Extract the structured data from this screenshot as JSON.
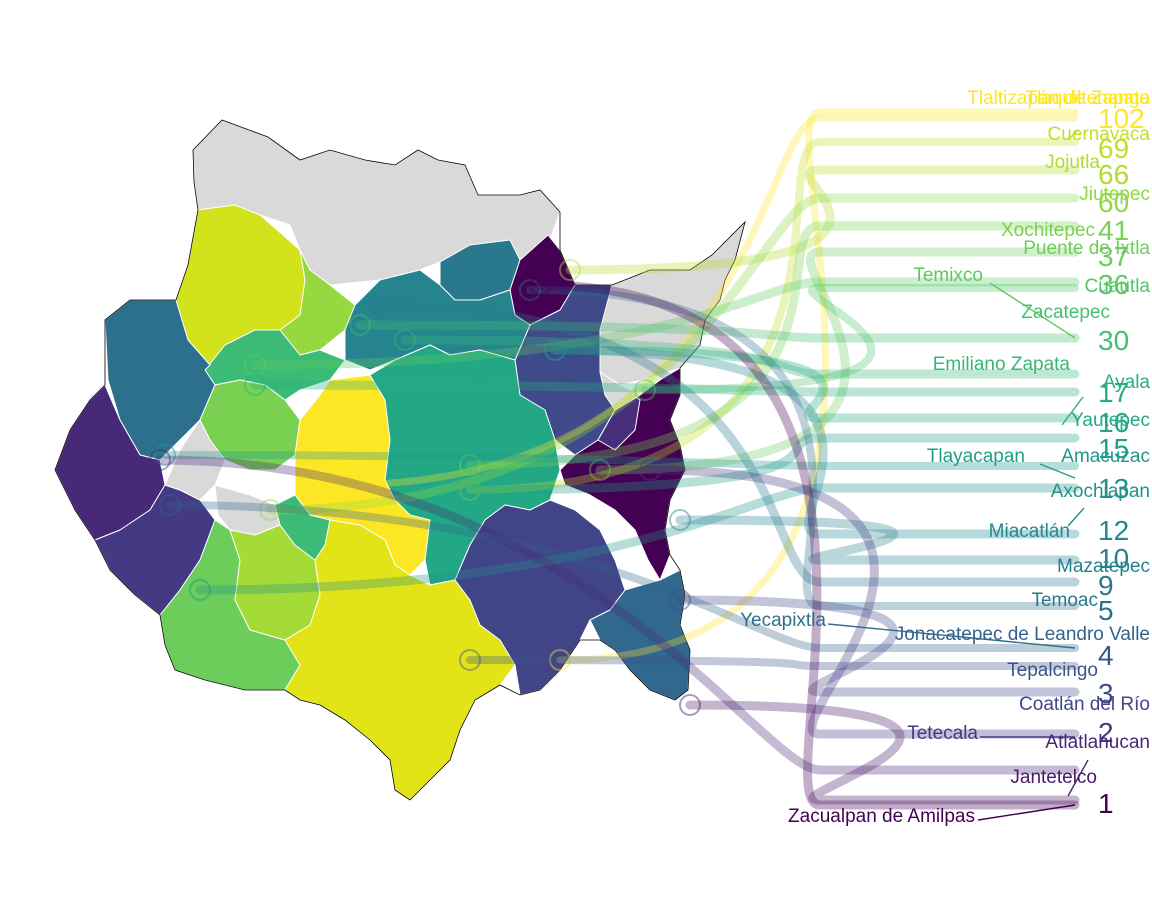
{
  "map": {
    "colors": {
      "no_data": "#d9d9d9",
      "outline": "#000000"
    },
    "regions": [
      {
        "name": "north-west",
        "color": "#d9d9d9"
      },
      {
        "name": "north-east",
        "color": "#d9d9d9"
      },
      {
        "name": "yellow-nw",
        "color": "#d2e21b"
      },
      {
        "name": "green-a",
        "color": "#3bbb75"
      },
      {
        "name": "green-b",
        "color": "#95d840"
      },
      {
        "name": "teal-north",
        "color": "#2a788e"
      },
      {
        "name": "purple-ne",
        "color": "#440154"
      },
      {
        "name": "navy-east",
        "color": "#3e4a89"
      },
      {
        "name": "west-teal",
        "color": "#2d708e"
      },
      {
        "name": "west-purple",
        "color": "#443983"
      },
      {
        "name": "west-purple-2",
        "color": "#482878"
      },
      {
        "name": "center-teal",
        "color": "#22a884"
      },
      {
        "name": "center-yellow",
        "color": "#fde725"
      },
      {
        "name": "center-green",
        "color": "#7ad151"
      },
      {
        "name": "center-teal-2",
        "color": "#25848e"
      },
      {
        "name": "south-yellow",
        "color": "#e3e418"
      },
      {
        "name": "south-green",
        "color": "#6ccd5a"
      },
      {
        "name": "south-lime",
        "color": "#a5db36"
      },
      {
        "name": "south-navy",
        "color": "#414487"
      },
      {
        "name": "south-east-teal",
        "color": "#31688e"
      },
      {
        "name": "east-purple",
        "color": "#440154"
      },
      {
        "name": "east-navy",
        "color": "#472f7d"
      },
      {
        "name": "center-grey",
        "color": "#d9d9d9"
      },
      {
        "name": "east-grey",
        "color": "#d9d9d9"
      }
    ]
  },
  "labels": [
    {
      "name": "Tlaltizapán de Zapata",
      "value": "102",
      "color": "#fde725"
    },
    {
      "name": "Tlaquiltenango",
      "value": "",
      "color": "#fde725"
    },
    {
      "name": "Cuernavaca",
      "value": "69",
      "color": "#c2df23"
    },
    {
      "name": "Jojutla",
      "value": "66",
      "color": "#b0dd2f"
    },
    {
      "name": "Jiutepec",
      "value": "60",
      "color": "#8fd744"
    },
    {
      "name": "Xochitepec",
      "value": "41",
      "color": "#7ad151"
    },
    {
      "name": "Puente de Ixtla",
      "value": "37",
      "color": "#6ccd5a"
    },
    {
      "name": "Temixco",
      "value": "36",
      "color": "#5ec962"
    },
    {
      "name": "Cuautla",
      "value": "",
      "color": "#52c569"
    },
    {
      "name": "Zacatepec",
      "value": "30",
      "color": "#44bf70"
    },
    {
      "name": "Emiliano Zapata",
      "value": "",
      "color": "#35b779"
    },
    {
      "name": "Ayala",
      "value": "17",
      "color": "#29af7f"
    },
    {
      "name": "Yautepec",
      "value": "16",
      "color": "#22a884"
    },
    {
      "name": "Tlayacapan",
      "value": "15",
      "color": "#1fa088"
    },
    {
      "name": "Amacuzac",
      "value": "",
      "color": "#1f978b"
    },
    {
      "name": "Axochiapan",
      "value": "13",
      "color": "#21918c"
    },
    {
      "name": "Miacatlán",
      "value": "12",
      "color": "#23888e"
    },
    {
      "name": "Mazatepec",
      "value": "10",
      "color": "#26818e"
    },
    {
      "name": "Temoac",
      "value": "9",
      "color": "#2a788e"
    },
    {
      "name": "Yecapixtla",
      "value": "5",
      "color": "#2e6f8e"
    },
    {
      "name": "Jonacatepec de Leandro Valle",
      "value": "",
      "color": "#33638d"
    },
    {
      "name": "Tepalcingo",
      "value": "4",
      "color": "#3a548c"
    },
    {
      "name": "Coatlán del Río",
      "value": "3",
      "color": "#404688"
    },
    {
      "name": "Tetecala",
      "value": "2",
      "color": "#453882"
    },
    {
      "name": "Atlatlahucan",
      "value": "",
      "color": "#482878"
    },
    {
      "name": "Jantetelco",
      "value": "",
      "color": "#48186a"
    },
    {
      "name": "Zacualpan de Amilpas",
      "value": "1",
      "color": "#440154"
    }
  ]
}
